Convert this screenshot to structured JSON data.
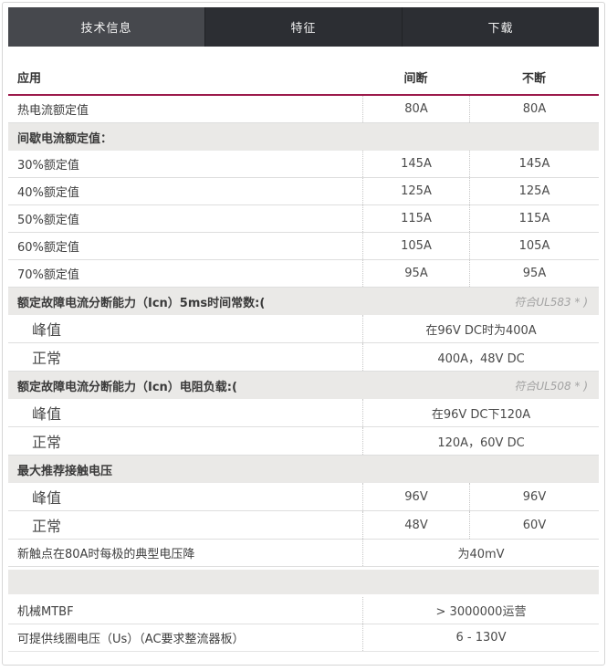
{
  "tabs": [
    {
      "label": "技术信息",
      "active": true
    },
    {
      "label": "特征",
      "active": false
    },
    {
      "label": "下载",
      "active": false
    }
  ],
  "table": {
    "header": {
      "application": "应用",
      "intermittent": "间断",
      "continuous": "不断"
    },
    "rows": [
      {
        "label": "热电流额定值",
        "v1": "80A",
        "v2": "80A"
      },
      {
        "label": "间歇电流额定值："
      },
      {
        "label": "30%额定值",
        "v1": "145A",
        "v2": "145A"
      },
      {
        "label": "40%额定值",
        "v1": "125A",
        "v2": "125A"
      },
      {
        "label": "50%额定值",
        "v1": "115A",
        "v2": "115A"
      },
      {
        "label": "60%额定值",
        "v1": "105A",
        "v2": "105A"
      },
      {
        "label": "70%额定值",
        "v1": "95A",
        "v2": "95A"
      },
      {
        "label": "额定故障电流分断能力（Icn）5ms时间常数:(",
        "note": "符合UL583 * )"
      },
      {
        "label": "峰值",
        "merged": "在96V DC时为400A"
      },
      {
        "label": "正常",
        "merged": "400A，48V DC"
      },
      {
        "label": "额定故障电流分断能力（Icn）电阻负载:(",
        "note": "符合UL508 * )"
      },
      {
        "label": "峰值",
        "merged": "在96V DC下120A"
      },
      {
        "label": "正常",
        "merged": "120A，60V DC"
      },
      {
        "label": "最大推荐接触电压"
      },
      {
        "label": "峰值",
        "v1": "96V",
        "v2": "96V"
      },
      {
        "label": "正常",
        "v1": "48V",
        "v2": "60V"
      },
      {
        "label": "新触点在80A时每极的典型电压降",
        "merged": "为40mV"
      },
      {
        "label": ""
      },
      {
        "label": "机械MTBF",
        "merged": "> 3000000运营"
      },
      {
        "label": "可提供线圈电压（Us）（AC要求整流器板）",
        "merged": "6 - 130V"
      }
    ]
  },
  "colors": {
    "accent_line": "#9c1a4b",
    "tab_active_bg": "#46484d",
    "tab_inactive_bg": "#2c2e33",
    "section_bg": "#eae9e7"
  }
}
